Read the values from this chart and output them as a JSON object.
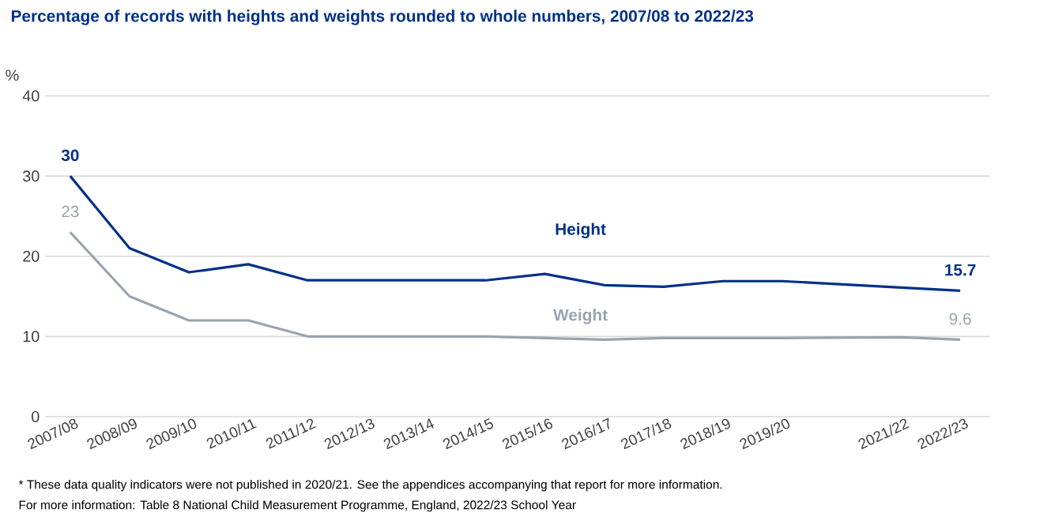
{
  "chart_data": {
    "type": "line",
    "title": "Percentage of records with heights and weights rounded to whole numbers, 2007/08  to 2022/23",
    "ylabel": "%",
    "categories": [
      "2007/08",
      "2008/09",
      "2009/10",
      "2010/11",
      "2011/12",
      "2012/13",
      "2013/14",
      "2014/15",
      "2015/16",
      "2016/17",
      "2017/18",
      "2018/19",
      "2019/20",
      null,
      "2021/22",
      "2022/23"
    ],
    "series": [
      {
        "name": "Height",
        "color": "#003087",
        "values": [
          30,
          21,
          18,
          19,
          17,
          17,
          17,
          17,
          17.8,
          16.4,
          16.2,
          16.9,
          16.9,
          null,
          16.1,
          15.7
        ],
        "value_labels": [
          "30",
          null,
          null,
          null,
          null,
          null,
          null,
          null,
          null,
          null,
          null,
          null,
          null,
          null,
          null,
          "15.7"
        ]
      },
      {
        "name": "Weight",
        "color": "#98a4ae",
        "values": [
          23,
          15,
          12,
          12,
          10,
          10,
          10,
          10,
          9.8,
          9.6,
          9.8,
          9.8,
          9.8,
          null,
          9.9,
          9.6
        ],
        "value_labels": [
          "23",
          null,
          null,
          null,
          null,
          null,
          null,
          null,
          null,
          null,
          null,
          null,
          null,
          null,
          null,
          "9.6"
        ]
      }
    ],
    "ylim": [
      0,
      40
    ],
    "yticks": [
      0,
      10,
      20,
      30,
      40
    ],
    "grid": "y",
    "legend": false,
    "marker": "none",
    "line_style": "solid",
    "annotations": [
      "* These data quality indicators were not published in 2020/21. See the appendices accompanying that report for more information.",
      "For more information: Table 8 National Child Measurement Programme, England, 2022/23 School Year"
    ]
  }
}
